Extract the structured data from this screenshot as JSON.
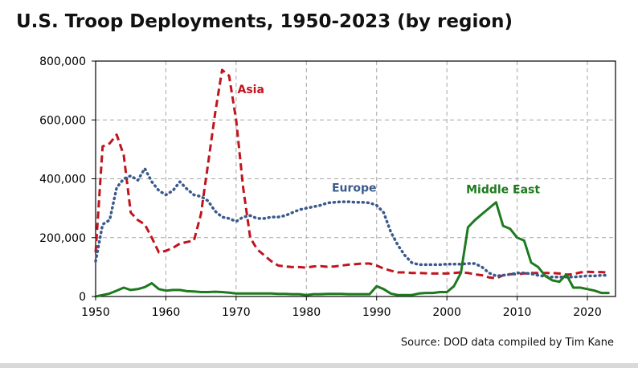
{
  "title": "U.S. Troop Deployments, 1950-2023 (by region)",
  "source": "Source: DOD data compiled by Tim Kane",
  "chart_data": {
    "type": "line",
    "title": "U.S. Troop Deployments, 1950-2023 (by region)",
    "xlabel": "",
    "ylabel": "",
    "xlim": [
      1950,
      2024
    ],
    "ylim": [
      0,
      800000
    ],
    "xticks": [
      1950,
      1960,
      1970,
      1980,
      1990,
      2000,
      2010,
      2020
    ],
    "xtick_labels": [
      "1950",
      "1960",
      "1970",
      "1980",
      "1990",
      "2000",
      "2010",
      "2020"
    ],
    "yticks": [
      0,
      200000,
      400000,
      600000,
      800000
    ],
    "ytick_labels": [
      "0",
      "200,000",
      "400,000",
      "600,000",
      "800,000"
    ],
    "grid": true,
    "series": [
      {
        "name": "Asia",
        "color": "#c0141e",
        "style": "dashed",
        "x": [
          1950,
          1951,
          1952,
          1953,
          1954,
          1955,
          1956,
          1957,
          1958,
          1959,
          1960,
          1961,
          1962,
          1963,
          1964,
          1965,
          1966,
          1967,
          1968,
          1969,
          1970,
          1971,
          1972,
          1973,
          1974,
          1975,
          1976,
          1977,
          1978,
          1979,
          1980,
          1981,
          1982,
          1983,
          1984,
          1985,
          1986,
          1987,
          1988,
          1989,
          1990,
          1991,
          1992,
          1993,
          1994,
          1995,
          1996,
          1997,
          1998,
          1999,
          2000,
          2001,
          2002,
          2003,
          2004,
          2005,
          2006,
          2007,
          2008,
          2009,
          2010,
          2011,
          2012,
          2013,
          2014,
          2015,
          2016,
          2017,
          2018,
          2019,
          2020,
          2021,
          2022,
          2023
        ],
        "values": [
          150000,
          510000,
          520000,
          550000,
          480000,
          285000,
          260000,
          245000,
          200000,
          150000,
          155000,
          165000,
          180000,
          185000,
          190000,
          280000,
          450000,
          620000,
          770000,
          750000,
          600000,
          370000,
          200000,
          160000,
          140000,
          120000,
          105000,
          102000,
          100000,
          100000,
          98000,
          102000,
          103000,
          101000,
          102000,
          105000,
          108000,
          110000,
          112000,
          112000,
          105000,
          95000,
          88000,
          82000,
          82000,
          80000,
          80000,
          79000,
          78000,
          78000,
          78000,
          80000,
          82000,
          80000,
          75000,
          72000,
          65000,
          62000,
          72000,
          76000,
          76000,
          78000,
          80000,
          80000,
          80000,
          80000,
          78000,
          74000,
          76000,
          82000,
          84000,
          83000,
          83000,
          81000
        ]
      },
      {
        "name": "Europe",
        "color": "#3a5a8c",
        "style": "dotted",
        "x": [
          1950,
          1951,
          1952,
          1953,
          1954,
          1955,
          1956,
          1957,
          1958,
          1959,
          1960,
          1961,
          1962,
          1963,
          1964,
          1965,
          1966,
          1967,
          1968,
          1969,
          1970,
          1971,
          1972,
          1973,
          1974,
          1975,
          1976,
          1977,
          1978,
          1979,
          1980,
          1981,
          1982,
          1983,
          1984,
          1985,
          1986,
          1987,
          1988,
          1989,
          1990,
          1991,
          1992,
          1993,
          1994,
          1995,
          1996,
          1997,
          1998,
          1999,
          2000,
          2001,
          2002,
          2003,
          2004,
          2005,
          2006,
          2007,
          2008,
          2009,
          2010,
          2011,
          2012,
          2013,
          2014,
          2015,
          2016,
          2017,
          2018,
          2019,
          2020,
          2021,
          2022,
          2023
        ],
        "values": [
          120000,
          245000,
          260000,
          370000,
          400000,
          410000,
          395000,
          435000,
          390000,
          360000,
          345000,
          360000,
          390000,
          365000,
          345000,
          340000,
          325000,
          290000,
          270000,
          265000,
          255000,
          270000,
          275000,
          265000,
          265000,
          270000,
          270000,
          275000,
          285000,
          295000,
          300000,
          305000,
          310000,
          318000,
          320000,
          322000,
          322000,
          320000,
          320000,
          318000,
          310000,
          285000,
          220000,
          175000,
          140000,
          115000,
          108000,
          108000,
          108000,
          108000,
          110000,
          110000,
          110000,
          112000,
          112000,
          100000,
          80000,
          70000,
          72000,
          75000,
          80000,
          80000,
          77000,
          72000,
          68000,
          66000,
          66000,
          66000,
          66000,
          68000,
          70000,
          70000,
          72000,
          72000
        ]
      },
      {
        "name": "Middle East",
        "color": "#1e7a1e",
        "style": "solid",
        "x": [
          1950,
          1951,
          1952,
          1953,
          1954,
          1955,
          1956,
          1957,
          1958,
          1959,
          1960,
          1961,
          1962,
          1963,
          1964,
          1965,
          1966,
          1967,
          1968,
          1969,
          1970,
          1971,
          1972,
          1973,
          1974,
          1975,
          1976,
          1977,
          1978,
          1979,
          1980,
          1981,
          1982,
          1983,
          1984,
          1985,
          1986,
          1987,
          1988,
          1989,
          1990,
          1991,
          1992,
          1993,
          1994,
          1995,
          1996,
          1997,
          1998,
          1999,
          2000,
          2001,
          2002,
          2003,
          2004,
          2005,
          2006,
          2007,
          2008,
          2009,
          2010,
          2011,
          2012,
          2013,
          2014,
          2015,
          2016,
          2017,
          2018,
          2019,
          2020,
          2021,
          2022,
          2023
        ],
        "values": [
          0,
          5000,
          10000,
          20000,
          30000,
          22000,
          25000,
          32000,
          45000,
          25000,
          20000,
          22000,
          22000,
          18000,
          17000,
          15000,
          15000,
          16000,
          15000,
          13000,
          10000,
          10000,
          10000,
          10000,
          10000,
          10000,
          9000,
          9000,
          8000,
          8000,
          5000,
          8000,
          8000,
          9000,
          9000,
          9000,
          8000,
          8000,
          8000,
          8000,
          35000,
          25000,
          10000,
          5000,
          5000,
          5000,
          10000,
          12000,
          12000,
          15000,
          15000,
          35000,
          80000,
          235000,
          260000,
          280000,
          300000,
          320000,
          240000,
          230000,
          200000,
          190000,
          115000,
          100000,
          70000,
          55000,
          50000,
          75000,
          30000,
          30000,
          25000,
          20000,
          12000,
          12000
        ]
      }
    ],
    "annotations": [
      {
        "text": "Asia",
        "color": "#c0141e",
        "x": 1972.1,
        "y": 705000
      },
      {
        "text": "Europe",
        "color": "#3a5a8c",
        "x": 1986.8,
        "y": 370000
      },
      {
        "text": "Middle East",
        "color": "#1e7a1e",
        "x": 2008.0,
        "y": 365000
      }
    ]
  }
}
